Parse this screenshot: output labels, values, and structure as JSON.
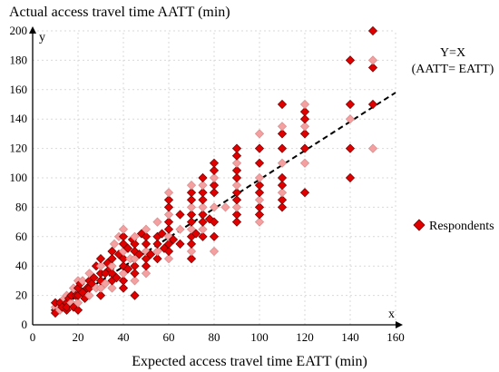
{
  "chart_data": {
    "type": "scatter",
    "ylabel": "Actual access travel time  AATT (min)",
    "xlabel": "Expected access travel time  EATT (min)",
    "x_axis_symbol": "x",
    "y_axis_symbol": "y",
    "xlim": [
      0,
      160
    ],
    "ylim": [
      0,
      200
    ],
    "x_ticks": [
      "0",
      "20",
      "40",
      "60",
      "80",
      "100",
      "120",
      "140",
      "160"
    ],
    "y_ticks": [
      "0",
      "20",
      "40",
      "60",
      "80",
      "100",
      "120",
      "140",
      "160",
      "180",
      "200"
    ],
    "grid": true,
    "reference_line": {
      "label_line1": "Y=X",
      "label_line2": "(AATT= EATT)",
      "style": "dashed",
      "color": "#000000",
      "points": [
        [
          10,
          10
        ],
        [
          160,
          158
        ]
      ]
    },
    "legend": {
      "position": "right",
      "label": "Respondents"
    },
    "series": [
      {
        "name": "Respondents",
        "marker": "diamond",
        "color_strong": "#e00000",
        "color_light": "#f4a0a0",
        "points": [
          [
            10,
            10
          ],
          [
            10,
            12
          ],
          [
            10,
            15
          ],
          [
            10,
            8
          ],
          [
            12,
            10
          ],
          [
            12,
            15
          ],
          [
            13,
            12
          ],
          [
            14,
            18
          ],
          [
            15,
            10
          ],
          [
            15,
            15
          ],
          [
            15,
            20
          ],
          [
            15,
            12
          ],
          [
            16,
            18
          ],
          [
            17,
            15
          ],
          [
            17,
            20
          ],
          [
            18,
            12
          ],
          [
            18,
            25
          ],
          [
            19,
            20
          ],
          [
            20,
            10
          ],
          [
            20,
            15
          ],
          [
            20,
            20
          ],
          [
            20,
            25
          ],
          [
            20,
            30
          ],
          [
            21,
            28
          ],
          [
            22,
            22
          ],
          [
            22,
            30
          ],
          [
            23,
            18
          ],
          [
            24,
            25
          ],
          [
            25,
            20
          ],
          [
            25,
            25
          ],
          [
            25,
            30
          ],
          [
            25,
            35
          ],
          [
            26,
            28
          ],
          [
            27,
            32
          ],
          [
            28,
            25
          ],
          [
            28,
            40
          ],
          [
            30,
            20
          ],
          [
            30,
            25
          ],
          [
            30,
            30
          ],
          [
            30,
            35
          ],
          [
            30,
            40
          ],
          [
            30,
            45
          ],
          [
            32,
            35
          ],
          [
            32,
            28
          ],
          [
            33,
            42
          ],
          [
            34,
            38
          ],
          [
            35,
            25
          ],
          [
            35,
            30
          ],
          [
            35,
            35
          ],
          [
            35,
            40
          ],
          [
            35,
            45
          ],
          [
            35,
            50
          ],
          [
            36,
            55
          ],
          [
            37,
            32
          ],
          [
            38,
            48
          ],
          [
            38,
            60
          ],
          [
            40,
            25
          ],
          [
            40,
            30
          ],
          [
            40,
            35
          ],
          [
            40,
            40
          ],
          [
            40,
            45
          ],
          [
            40,
            50
          ],
          [
            40,
            55
          ],
          [
            40,
            60
          ],
          [
            40,
            65
          ],
          [
            42,
            38
          ],
          [
            42,
            52
          ],
          [
            43,
            45
          ],
          [
            44,
            58
          ],
          [
            45,
            20
          ],
          [
            45,
            30
          ],
          [
            45,
            35
          ],
          [
            45,
            40
          ],
          [
            45,
            45
          ],
          [
            45,
            50
          ],
          [
            45,
            55
          ],
          [
            45,
            60
          ],
          [
            47,
            48
          ],
          [
            48,
            62
          ],
          [
            50,
            35
          ],
          [
            50,
            40
          ],
          [
            50,
            45
          ],
          [
            50,
            50
          ],
          [
            50,
            55
          ],
          [
            50,
            60
          ],
          [
            50,
            65
          ],
          [
            52,
            48
          ],
          [
            55,
            45
          ],
          [
            55,
            50
          ],
          [
            55,
            55
          ],
          [
            55,
            60
          ],
          [
            55,
            70
          ],
          [
            57,
            62
          ],
          [
            58,
            52
          ],
          [
            60,
            45
          ],
          [
            60,
            50
          ],
          [
            60,
            55
          ],
          [
            60,
            60
          ],
          [
            60,
            65
          ],
          [
            60,
            70
          ],
          [
            60,
            75
          ],
          [
            60,
            80
          ],
          [
            60,
            85
          ],
          [
            60,
            90
          ],
          [
            62,
            58
          ],
          [
            65,
            55
          ],
          [
            65,
            65
          ],
          [
            65,
            75
          ],
          [
            70,
            45
          ],
          [
            70,
            50
          ],
          [
            70,
            55
          ],
          [
            70,
            60
          ],
          [
            70,
            65
          ],
          [
            70,
            70
          ],
          [
            70,
            75
          ],
          [
            70,
            80
          ],
          [
            70,
            85
          ],
          [
            70,
            90
          ],
          [
            70,
            95
          ],
          [
            72,
            62
          ],
          [
            75,
            60
          ],
          [
            75,
            65
          ],
          [
            75,
            70
          ],
          [
            75,
            75
          ],
          [
            75,
            80
          ],
          [
            75,
            85
          ],
          [
            75,
            90
          ],
          [
            75,
            95
          ],
          [
            75,
            100
          ],
          [
            78,
            72
          ],
          [
            80,
            50
          ],
          [
            80,
            60
          ],
          [
            80,
            70
          ],
          [
            80,
            80
          ],
          [
            80,
            90
          ],
          [
            80,
            95
          ],
          [
            80,
            100
          ],
          [
            80,
            105
          ],
          [
            80,
            110
          ],
          [
            85,
            80
          ],
          [
            90,
            70
          ],
          [
            90,
            75
          ],
          [
            90,
            80
          ],
          [
            90,
            85
          ],
          [
            90,
            90
          ],
          [
            90,
            95
          ],
          [
            90,
            100
          ],
          [
            90,
            105
          ],
          [
            90,
            110
          ],
          [
            90,
            115
          ],
          [
            90,
            120
          ],
          [
            100,
            70
          ],
          [
            100,
            75
          ],
          [
            100,
            80
          ],
          [
            100,
            85
          ],
          [
            100,
            90
          ],
          [
            100,
            95
          ],
          [
            100,
            100
          ],
          [
            100,
            110
          ],
          [
            100,
            120
          ],
          [
            100,
            130
          ],
          [
            110,
            80
          ],
          [
            110,
            85
          ],
          [
            110,
            90
          ],
          [
            110,
            95
          ],
          [
            110,
            100
          ],
          [
            110,
            110
          ],
          [
            110,
            120
          ],
          [
            110,
            130
          ],
          [
            110,
            135
          ],
          [
            110,
            150
          ],
          [
            120,
            90
          ],
          [
            120,
            110
          ],
          [
            120,
            120
          ],
          [
            120,
            130
          ],
          [
            120,
            135
          ],
          [
            120,
            140
          ],
          [
            120,
            145
          ],
          [
            120,
            150
          ],
          [
            140,
            100
          ],
          [
            140,
            120
          ],
          [
            140,
            140
          ],
          [
            140,
            150
          ],
          [
            140,
            180
          ],
          [
            150,
            120
          ],
          [
            150,
            150
          ],
          [
            150,
            175
          ],
          [
            150,
            180
          ],
          [
            150,
            200
          ]
        ]
      }
    ]
  }
}
